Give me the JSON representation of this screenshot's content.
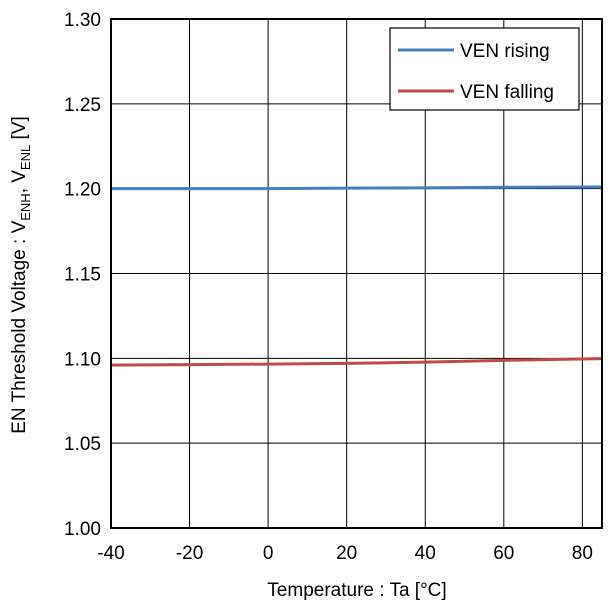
{
  "chart_data": {
    "type": "line",
    "xlabel": "Temperature : Ta [°C]",
    "ylabel": {
      "main": "EN Threshold Voltage : V",
      "sub1": "ENH",
      "mid": ", V",
      "sub2": "ENL",
      "end": " [V]"
    },
    "xlim": [
      -40,
      85
    ],
    "ylim": [
      1.0,
      1.3
    ],
    "x_ticks": [
      -40,
      -20,
      0,
      20,
      40,
      60,
      80
    ],
    "x_tick_labels": [
      "-40",
      "-20",
      "0",
      "20",
      "40",
      "60",
      "80"
    ],
    "y_ticks": [
      1.0,
      1.05,
      1.1,
      1.15,
      1.2,
      1.25,
      1.3
    ],
    "y_tick_labels": [
      "1.00",
      "1.05",
      "1.10",
      "1.15",
      "1.20",
      "1.25",
      "1.30"
    ],
    "grid": true,
    "legend_position": "top-right",
    "series": [
      {
        "name": "VEN rising",
        "color": "#4a7ebb",
        "x": [
          -40,
          -20,
          0,
          20,
          40,
          60,
          85
        ],
        "y": [
          1.2,
          1.2,
          1.2,
          1.2003,
          1.2005,
          1.2008,
          1.201
        ]
      },
      {
        "name": "VEN falling",
        "color": "#be4b48",
        "x": [
          -40,
          -20,
          0,
          20,
          40,
          60,
          85
        ],
        "y": [
          1.096,
          1.0963,
          1.0966,
          1.097,
          1.0978,
          1.0988,
          1.0998
        ]
      }
    ]
  }
}
